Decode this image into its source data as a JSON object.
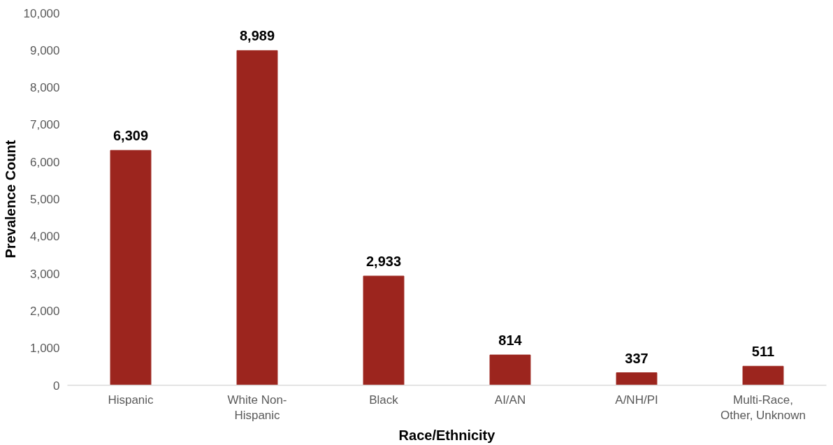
{
  "chart_data": {
    "type": "bar",
    "xlabel": "Race/Ethnicity",
    "ylabel": "Prevalence Count",
    "categories": [
      "Hispanic",
      "White Non-Hispanic",
      "Black",
      "AI/AN",
      "A/NH/PI",
      "Multi-Race, Other, Unknown"
    ],
    "values": [
      6309,
      8989,
      2933,
      814,
      337,
      511
    ],
    "color": "#9c251e",
    "ylim": [
      0,
      10000
    ],
    "yticks": [
      {
        "value": 0,
        "label": "0"
      },
      {
        "value": 1000,
        "label": "1,000"
      },
      {
        "value": 2000,
        "label": "2,000"
      },
      {
        "value": 3000,
        "label": "3,000"
      },
      {
        "value": 4000,
        "label": "4,000"
      },
      {
        "value": 5000,
        "label": "5,000"
      },
      {
        "value": 6000,
        "label": "6,000"
      },
      {
        "value": 7000,
        "label": "7,000"
      },
      {
        "value": 8000,
        "label": "8,000"
      },
      {
        "value": 9000,
        "label": "9,000"
      },
      {
        "value": 10000,
        "label": "10,000"
      }
    ],
    "grid": false,
    "value_labels": [
      "6,309",
      "8,989",
      "2,933",
      "814",
      "337",
      "511"
    ]
  }
}
